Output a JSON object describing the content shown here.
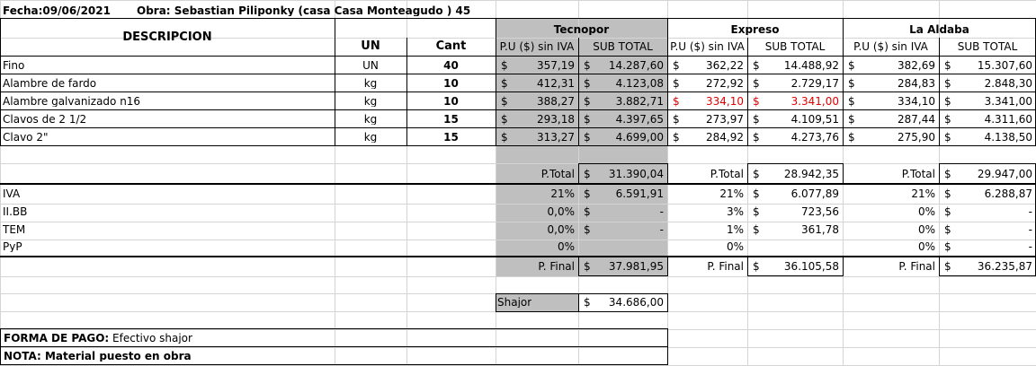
{
  "header": {
    "fecha": "Fecha:09/06/2021",
    "obra": "Obra: Sebastian Piliponky (casa Casa Monteagudo ) 45"
  },
  "columns": {
    "descripcion": "DESCRIPCION",
    "un": "UN",
    "cant": "Cant",
    "pu": "P.U ($) sin IVA",
    "subtotal": "SUB TOTAL"
  },
  "suppliers": [
    "Tecnopor",
    "Expreso",
    "La Aldaba"
  ],
  "currency": "$",
  "rows": [
    {
      "desc": "Fino",
      "un": "UN",
      "cant": "40",
      "tec_pu": "357,19",
      "tec_sub": "14.287,60",
      "exp_pu": "362,22",
      "exp_sub": "14.488,92",
      "ald_pu": "382,69",
      "ald_sub": "15.307,60"
    },
    {
      "desc": "Alambre de fardo",
      "un": "kg",
      "cant": "10",
      "tec_pu": "412,31",
      "tec_sub": "4.123,08",
      "exp_pu": "272,92",
      "exp_sub": "2.729,17",
      "ald_pu": "284,83",
      "ald_sub": "2.848,30"
    },
    {
      "desc": "Alambre galvanizado n16",
      "un": "kg",
      "cant": "10",
      "tec_pu": "388,27",
      "tec_sub": "3.882,71",
      "exp_pu": "334,10",
      "exp_sub": "3.341,00",
      "ald_pu": "334,10",
      "ald_sub": "3.341,00"
    },
    {
      "desc": "Clavos de 2 1/2",
      "un": "kg",
      "cant": "15",
      "tec_pu": "293,18",
      "tec_sub": "4.397,65",
      "exp_pu": "273,97",
      "exp_sub": "4.109,51",
      "ald_pu": "287,44",
      "ald_sub": "4.311,60"
    },
    {
      "desc": "Clavo 2\"",
      "un": "kg",
      "cant": "15",
      "tec_pu": "313,27",
      "tec_sub": "4.699,00",
      "exp_pu": "284,92",
      "exp_sub": "4.273,76",
      "ald_pu": "275,90",
      "ald_sub": "4.138,50"
    }
  ],
  "totals": {
    "ptotal_label": "P.Total",
    "tecnopor": "31.390,04",
    "expreso": "28.942,35",
    "laaldaba": "29.947,00"
  },
  "taxes": [
    {
      "label": "IVA",
      "tec_pct": "21%",
      "tec_val": "6.591,91",
      "exp_pct": "21%",
      "exp_val": "6.077,89",
      "ald_pct": "21%",
      "ald_val": "6.288,87"
    },
    {
      "label": "II.BB",
      "tec_pct": "0,0%",
      "tec_val": "-",
      "exp_pct": "3%",
      "exp_val": "723,56",
      "ald_pct": "0%",
      "ald_val": "-"
    },
    {
      "label": "TEM",
      "tec_pct": "0,0%",
      "tec_val": "-",
      "exp_pct": "1%",
      "exp_val": "361,78",
      "ald_pct": "0%",
      "ald_val": "-"
    },
    {
      "label": "PyP",
      "tec_pct": "0%",
      "tec_val": "",
      "exp_pct": "0%",
      "exp_val": "",
      "ald_pct": "0%",
      "ald_val": "-"
    }
  ],
  "final": {
    "label": "P. Final",
    "tecnopor": "37.981,95",
    "expreso": "36.105,58",
    "laaldaba": "36.235,87"
  },
  "shajor": {
    "label": "Shajor",
    "value": "34.686,00"
  },
  "footer": {
    "forma_label": "FORMA DE PAGO:",
    "forma_value": "Efectivo shajor",
    "nota": "NOTA: Material puesto en obra"
  },
  "colors": {
    "highlight": "#bfbfbf",
    "red": "#e00000",
    "grid": "#d4d4d4"
  }
}
